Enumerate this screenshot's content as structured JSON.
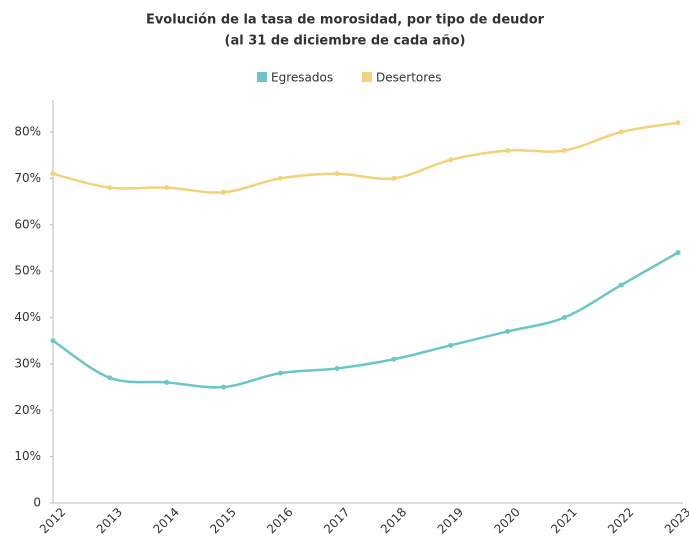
{
  "chart_data": {
    "type": "line",
    "title": "Evolución de la tasa de morosidad, por tipo de deudor",
    "subtitle": "(al 31 de diciembre de cada año)",
    "categories": [
      "2012",
      "2013",
      "2014",
      "2015",
      "2016",
      "2017",
      "2018",
      "2019",
      "2020",
      "2021",
      "2022",
      "2023"
    ],
    "series": [
      {
        "name": "Egresados",
        "color": "#6cc5c9",
        "values": [
          35,
          27,
          26,
          25,
          28,
          29,
          31,
          34,
          37,
          40,
          47,
          54
        ]
      },
      {
        "name": "Desertores",
        "color": "#f3d27a",
        "values": [
          71,
          68,
          68,
          67,
          70,
          71,
          70,
          74,
          76,
          76,
          80,
          82
        ]
      }
    ],
    "ylim": [
      0,
      85
    ],
    "yticks": [
      0,
      {
        "value": 10,
        "label": "10%"
      },
      {
        "value": 20,
        "label": "20%"
      },
      {
        "value": 30,
        "label": "30%"
      },
      {
        "value": 40,
        "label": "40%"
      },
      {
        "value": 50,
        "label": "50%"
      },
      {
        "value": 60,
        "label": "60%"
      },
      {
        "value": 70,
        "label": "70%"
      },
      {
        "value": 80,
        "label": "80%"
      }
    ],
    "grid": false,
    "legend": "top",
    "smooth": true
  }
}
